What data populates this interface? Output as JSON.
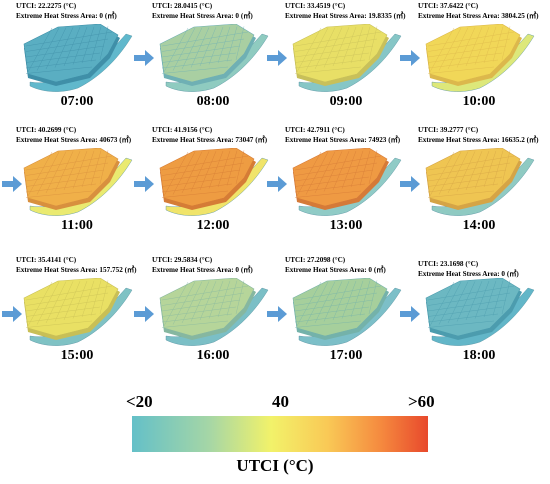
{
  "panels": [
    {
      "utci": "UTCI: 22.2275 (°C)",
      "area": "Extreme Heat Stress Area: 0 (㎡)",
      "time": "07:00",
      "city": "#5aaec2",
      "shade": "#3f8fa8",
      "river": "#60b8cc"
    },
    {
      "utci": "UTCI: 28.0415 (°C)",
      "area": "Extreme Heat Stress Area: 0 (㎡)",
      "time": "08:00",
      "city": "#a9cfa2",
      "shade": "#6fb0b4",
      "river": "#8fcbc0"
    },
    {
      "utci": "UTCI: 33.4519 (°C)",
      "area": "Extreme Heat Stress Area: 19.8335 (㎡)",
      "time": "09:00",
      "city": "#e8df66",
      "shade": "#c8c05a",
      "river": "#86c6c6"
    },
    {
      "utci": "UTCI: 37.6422 (°C)",
      "area": "Extreme Heat Stress Area: 3804.25 (㎡)",
      "time": "10:00",
      "city": "#f1d758",
      "shade": "#dcb84c",
      "river": "#dde87a"
    },
    {
      "utci": "UTCI: 40.2699 (°C)",
      "area": "Extreme Heat Stress Area: 40673 (㎡)",
      "time": "11:00",
      "city": "#f0b049",
      "shade": "#d8903e",
      "river": "#eaea70"
    },
    {
      "utci": "UTCI: 41.9156 (°C)",
      "area": "Extreme Heat Stress Area: 73047 (㎡)",
      "time": "12:00",
      "city": "#ee9c42",
      "shade": "#d57c36",
      "river": "#f0e46a"
    },
    {
      "utci": "UTCI: 42.7911 (°C)",
      "area": "Extreme Heat Stress Area: 74923 (㎡)",
      "time": "13:00",
      "city": "#ef9a43",
      "shade": "#d57a38",
      "river": "#90cbc6"
    },
    {
      "utci": "UTCI: 39.2777 (°C)",
      "area": "Extreme Heat Stress Area: 16635.2 (㎡)",
      "time": "14:00",
      "city": "#efc552",
      "shade": "#d5a446",
      "river": "#8fcac2"
    },
    {
      "utci": "UTCI: 35.4141 (°C)",
      "area": "Extreme Heat Stress Area: 157.752 (㎡)",
      "time": "15:00",
      "city": "#e9e064",
      "shade": "#c8bf56",
      "river": "#7fc2c4"
    },
    {
      "utci": "UTCI: 29.5834 (°C)",
      "area": "Extreme Heat Stress Area: 0 (㎡)",
      "time": "16:00",
      "city": "#b6d59a",
      "shade": "#86b7a0",
      "river": "#7bbfc6"
    },
    {
      "utci": "UTCI: 27.2098 (°C)",
      "area": "Extreme Heat Stress Area: 0 (㎡)",
      "time": "17:00",
      "city": "#a6cf9c",
      "shade": "#74b2aa",
      "river": "#7cbfc8"
    },
    {
      "utci": "UTCI: 23.1698 (°C)",
      "area": "Extreme Heat Stress Area: 0 (㎡)",
      "time": "18:00",
      "city": "#6cb8c2",
      "shade": "#4c9cae",
      "river": "#62b6c8"
    }
  ],
  "legend": {
    "label_min": "<20",
    "label_mid": "40",
    "label_max": ">60",
    "title": "UTCI (°C)"
  },
  "colors": {
    "arrow": "#5b9bd5"
  }
}
